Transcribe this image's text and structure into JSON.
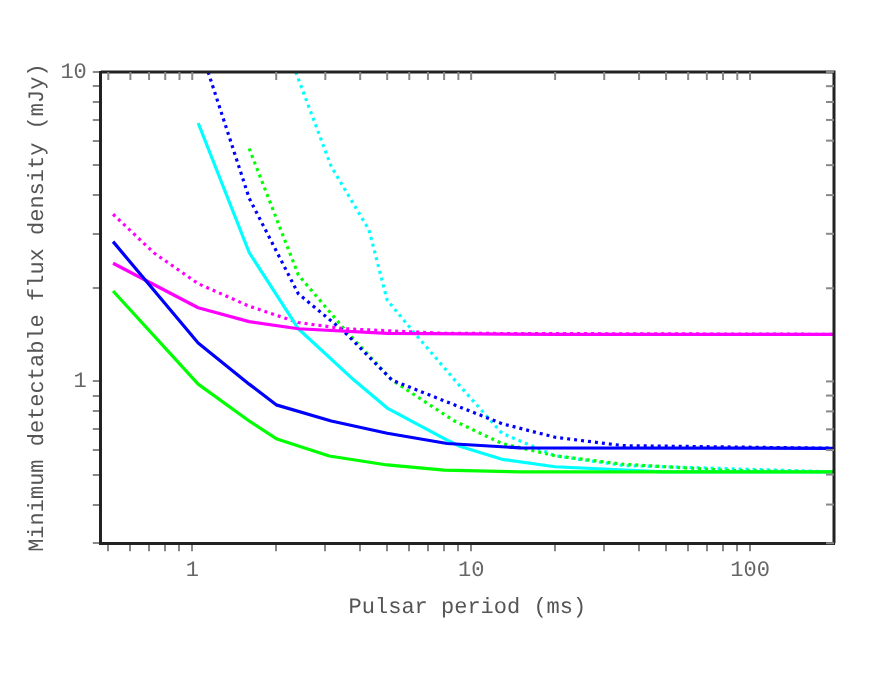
{
  "chart_data": {
    "type": "line",
    "xlabel": "Pulsar period (ms)",
    "ylabel": "Minimum detectable flux density (mJy)",
    "log": "xy",
    "grid": false,
    "legend": false,
    "marker": "none",
    "xlim": [
      0.47,
      200
    ],
    "ylim": [
      0.3,
      10
    ],
    "xticks": [
      {
        "value": 0.5,
        "label": null
      },
      {
        "value": 0.6,
        "label": null
      },
      {
        "value": 0.7,
        "label": null
      },
      {
        "value": 0.8,
        "label": null
      },
      {
        "value": 0.9,
        "label": null
      },
      1,
      {
        "value": 2,
        "label": null
      },
      {
        "value": 3,
        "label": null
      },
      {
        "value": 4,
        "label": null
      },
      {
        "value": 5,
        "label": null
      },
      {
        "value": 6,
        "label": null
      },
      {
        "value": 7,
        "label": null
      },
      {
        "value": 8,
        "label": null
      },
      {
        "value": 9,
        "label": null
      },
      10,
      {
        "value": 20,
        "label": null
      },
      {
        "value": 30,
        "label": null
      },
      {
        "value": 40,
        "label": null
      },
      {
        "value": 50,
        "label": null
      },
      {
        "value": 60,
        "label": null
      },
      {
        "value": 70,
        "label": null
      },
      {
        "value": 80,
        "label": null
      },
      {
        "value": 90,
        "label": null
      },
      100
    ],
    "yticks": [
      {
        "value": 0.3,
        "label": null
      },
      {
        "value": 0.4,
        "label": null
      },
      {
        "value": 0.5,
        "label": null
      },
      {
        "value": 0.6,
        "label": null
      },
      {
        "value": 0.7,
        "label": null
      },
      {
        "value": 0.8,
        "label": null
      },
      {
        "value": 0.9,
        "label": null
      },
      1,
      {
        "value": 2,
        "label": null
      },
      {
        "value": 3,
        "label": null
      },
      {
        "value": 4,
        "label": null
      },
      {
        "value": 5,
        "label": null
      },
      {
        "value": 6,
        "label": null
      },
      {
        "value": 7,
        "label": null
      },
      {
        "value": 8,
        "label": null
      },
      {
        "value": 9,
        "label": null
      },
      10
    ],
    "series": [
      {
        "color": "#00ff00",
        "line_style": "solid",
        "x": [
          0.52,
          1.05,
          1.6,
          2.0,
          3.1,
          5,
          8,
          15,
          200
        ],
        "values": [
          1.96,
          0.98,
          0.745,
          0.653,
          0.574,
          0.537,
          0.517,
          0.51,
          0.51
        ]
      },
      {
        "color": "#0000ff",
        "line_style": "solid",
        "x": [
          0.52,
          1.05,
          1.6,
          2.0,
          3.15,
          5,
          8.2,
          15,
          200
        ],
        "values": [
          2.83,
          1.33,
          0.98,
          0.84,
          0.745,
          0.68,
          0.63,
          0.61,
          0.608
        ]
      },
      {
        "color": "#ff00ff",
        "line_style": "solid",
        "x": [
          0.52,
          1.05,
          1.6,
          2.4,
          5,
          20,
          200
        ],
        "values": [
          2.41,
          1.73,
          1.56,
          1.48,
          1.43,
          1.42,
          1.42
        ]
      },
      {
        "color": "#00ffff",
        "line_style": "solid",
        "x": [
          1.05,
          1.6,
          2.4,
          3.8,
          5,
          8.2,
          9.1,
          12.9,
          20,
          49,
          200
        ],
        "values": [
          6.84,
          2.61,
          1.48,
          1.01,
          0.82,
          0.646,
          0.617,
          0.56,
          0.53,
          0.51,
          0.51
        ]
      },
      {
        "color": "#ff00ff",
        "line_style": "dotted",
        "x": [
          0.52,
          0.73,
          1.05,
          1.6,
          2.4,
          3.5,
          8,
          200
        ],
        "values": [
          3.47,
          2.6,
          2.07,
          1.75,
          1.55,
          1.48,
          1.43,
          1.42
        ]
      },
      {
        "color": "#0000ff",
        "line_style": "dotted",
        "x": [
          1.14,
          1.6,
          2.4,
          3.5,
          5.2,
          8.7,
          12.9,
          20,
          35,
          200
        ],
        "values": [
          10,
          3.91,
          1.92,
          1.45,
          1.01,
          0.84,
          0.73,
          0.66,
          0.62,
          0.608
        ]
      },
      {
        "color": "#00ff00",
        "line_style": "dotted",
        "x": [
          1.6,
          2.4,
          3.5,
          5.2,
          8.7,
          12.9,
          20,
          35,
          86,
          200
        ],
        "values": [
          5.66,
          2.21,
          1.48,
          1.01,
          0.745,
          0.63,
          0.575,
          0.54,
          0.515,
          0.51
        ]
      },
      {
        "color": "#00ffff",
        "line_style": "dotted",
        "x": [
          2.35,
          3.15,
          4.3,
          5,
          6.2,
          8.9,
          12.9,
          20,
          35,
          200
        ],
        "values": [
          10,
          4.95,
          3.09,
          1.83,
          1.45,
          0.99,
          0.68,
          0.575,
          0.535,
          0.51
        ]
      }
    ]
  }
}
